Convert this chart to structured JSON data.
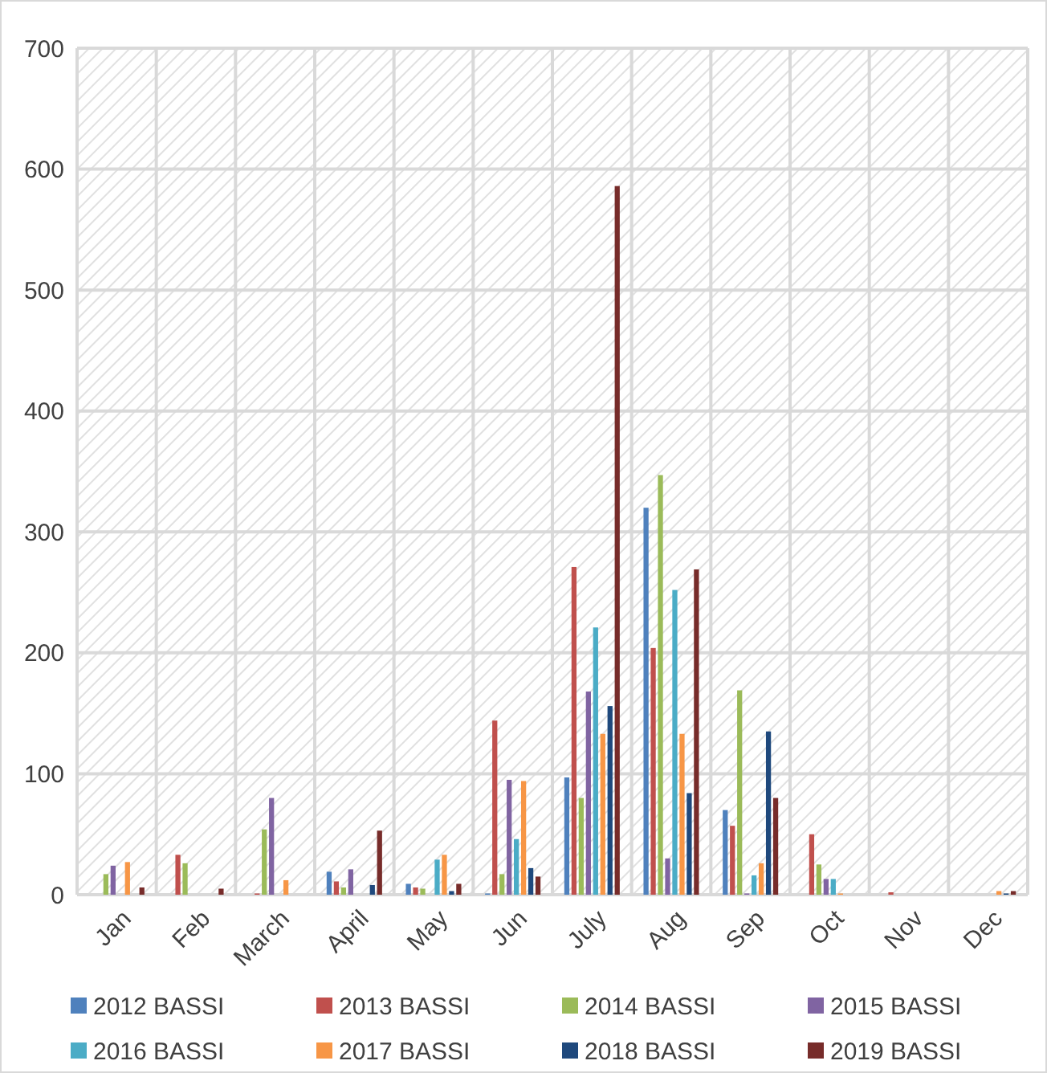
{
  "chart_data": {
    "type": "bar",
    "categories": [
      "Jan",
      "Feb",
      "March",
      "April",
      "May",
      "Jun",
      "July",
      "Aug",
      "Sep",
      "Oct",
      "Nov",
      "Dec"
    ],
    "series": [
      {
        "name": "2012 BASSI",
        "color": "#4f81bd",
        "values": [
          0,
          0,
          0,
          19,
          9,
          1,
          97,
          320,
          70,
          0,
          0,
          0
        ]
      },
      {
        "name": "2013 BASSI",
        "color": "#c0504d",
        "values": [
          0,
          33,
          1,
          11,
          6,
          144,
          271,
          204,
          57,
          50,
          2,
          0
        ]
      },
      {
        "name": "2014 BASSI",
        "color": "#9bbb59",
        "values": [
          17,
          26,
          54,
          6,
          5,
          17,
          80,
          347,
          169,
          25,
          0,
          0
        ]
      },
      {
        "name": "2015 BASSI",
        "color": "#8064a2",
        "values": [
          24,
          0,
          80,
          21,
          0,
          95,
          168,
          30,
          1,
          13,
          0,
          0
        ]
      },
      {
        "name": "2016 BASSI",
        "color": "#4bacc6",
        "values": [
          0,
          0,
          0,
          0,
          29,
          46,
          221,
          252,
          16,
          13,
          0,
          0
        ]
      },
      {
        "name": "2017 BASSI",
        "color": "#f79646",
        "values": [
          27,
          0,
          12,
          0,
          33,
          94,
          133,
          133,
          26,
          1,
          0,
          3
        ]
      },
      {
        "name": "2018 BASSI",
        "color": "#1f497d",
        "values": [
          0,
          0,
          0,
          8,
          3,
          22,
          156,
          84,
          135,
          0,
          0,
          1
        ]
      },
      {
        "name": "2019 BASSI",
        "color": "#772c2a",
        "values": [
          6,
          5,
          0,
          53,
          9,
          15,
          586,
          269,
          80,
          0,
          0,
          3
        ]
      }
    ],
    "ylim": [
      0,
      700
    ],
    "yticks": [
      0,
      100,
      200,
      300,
      400,
      500,
      600,
      700
    ],
    "grid": true,
    "legend": "bottom"
  }
}
